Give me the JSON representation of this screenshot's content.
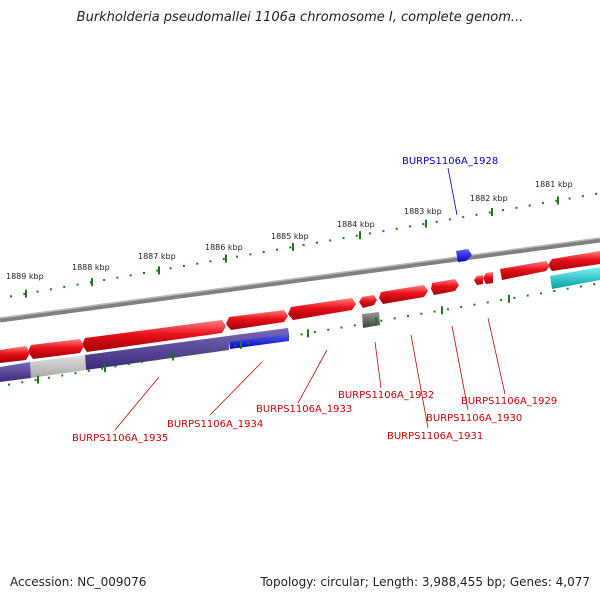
{
  "header": {
    "title": "Burkholderia pseudomallei 1106a chromosome I, complete genom..."
  },
  "ruler": {
    "labels": [
      "1881 kbp",
      "1882 kbp",
      "1883 kbp",
      "1884 kbp",
      "1885 kbp",
      "1886 kbp",
      "1887 kbp",
      "1888 kbp",
      "1889 kbp"
    ],
    "tick_color": "#1a7a1a"
  },
  "genes": {
    "labels": [
      {
        "text": "BURPS1106A_1928",
        "color": "#0000cc"
      },
      {
        "text": "BURPS1106A_1929",
        "color": "#cc0000"
      },
      {
        "text": "BURPS1106A_1930",
        "color": "#cc0000"
      },
      {
        "text": "BURPS1106A_1931",
        "color": "#cc0000"
      },
      {
        "text": "BURPS1106A_1932",
        "color": "#cc0000"
      },
      {
        "text": "BURPS1106A_1933",
        "color": "#cc0000"
      },
      {
        "text": "BURPS1106A_1934",
        "color": "#cc0000"
      },
      {
        "text": "BURPS1106A_1935",
        "color": "#cc0000"
      }
    ],
    "colors": {
      "forward_cds": "#e8101a",
      "rna_gene": "#1010e8",
      "pseudo_gene": "#555555",
      "cyan_feature": "#00b8c0",
      "purple_feature": "#4a3a90",
      "backbone": "#808080"
    }
  },
  "footer": {
    "accession": "Accession: NC_009076",
    "summary": "Topology: circular; Length: 3,988,455 bp; Genes: 4,077"
  }
}
